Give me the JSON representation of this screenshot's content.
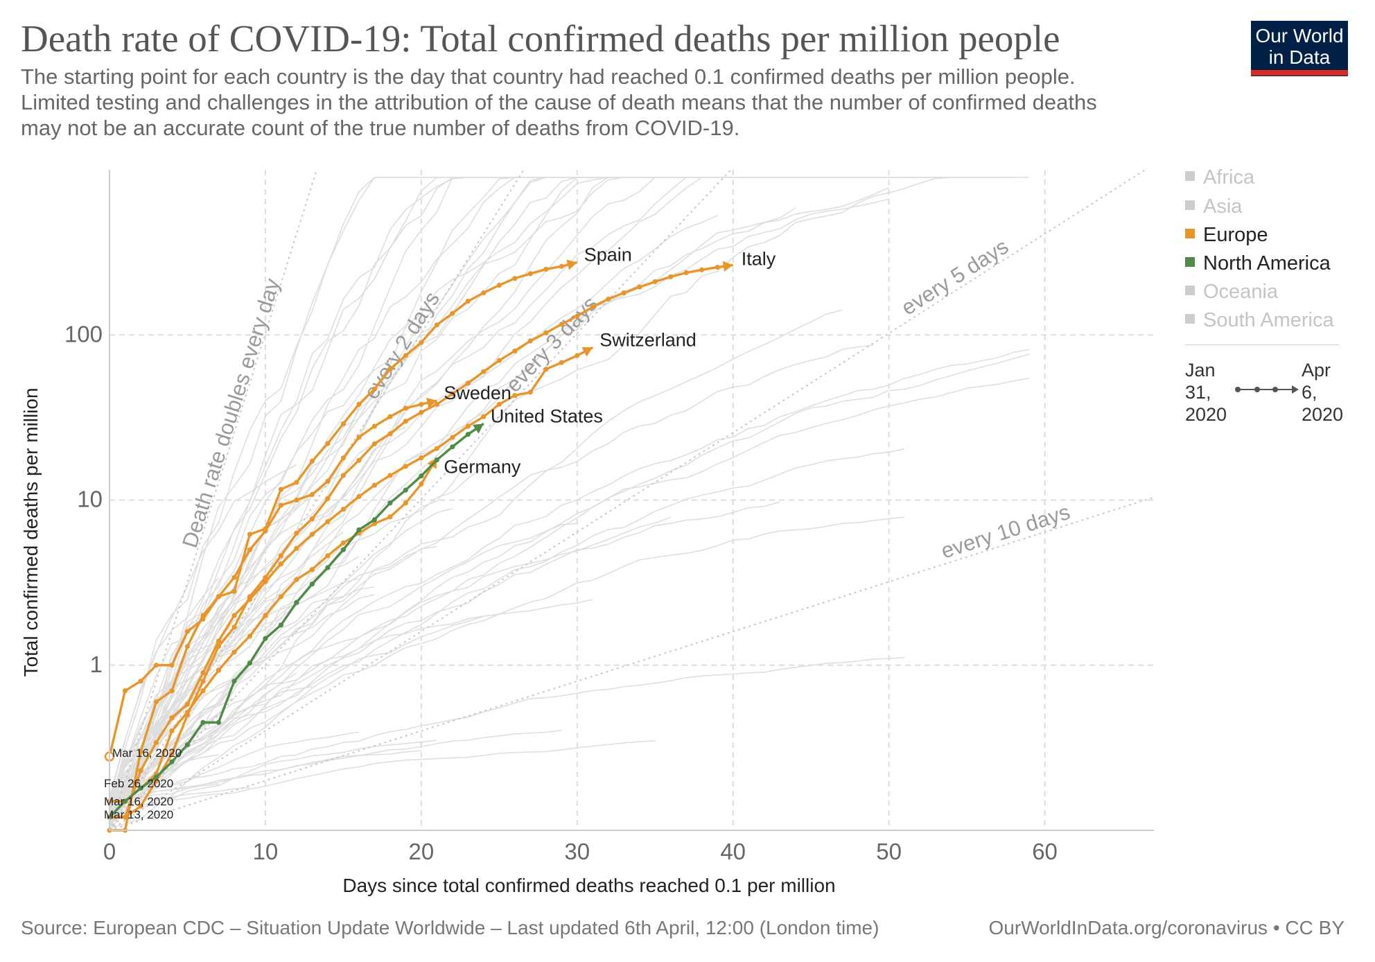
{
  "header": {
    "title": "Death rate of COVID-19: Total confirmed deaths per million people",
    "subtitle": "The starting point for each country is the day that country had reached 0.1 confirmed deaths per million people.\n Limited testing and challenges in the attribution of the cause of death means that the number of confirmed deaths\nmay not be an accurate count of the true number of deaths from COVID-19.",
    "logo_line1": "Our World",
    "logo_line2": "in Data",
    "logo_colors": {
      "background": "#002147",
      "bar": "#d42b21"
    }
  },
  "legend": {
    "items": [
      {
        "label": "Africa",
        "color": "#cccccc",
        "active": false
      },
      {
        "label": "Asia",
        "color": "#cccccc",
        "active": false
      },
      {
        "label": "Europe",
        "color": "#e8952a",
        "active": true
      },
      {
        "label": "North America",
        "color": "#4f8a46",
        "active": true
      },
      {
        "label": "Oceania",
        "color": "#cccccc",
        "active": false
      },
      {
        "label": "South America",
        "color": "#cccccc",
        "active": false
      }
    ]
  },
  "timeline": {
    "start_month": "Jan",
    "start_day": "31,",
    "start_year": "2020",
    "end_month": "Apr",
    "end_day": "6,",
    "end_year": "2020"
  },
  "footer": {
    "source": "Source: European CDC – Situation Update Worldwide – Last updated 6th April, 12:00 (London time)",
    "url": "OurWorldInData.org/coronavirus • CC BY"
  },
  "chart_data": {
    "type": "line",
    "xlabel": "Days since total confirmed deaths reached 0.1 per million",
    "ylabel": "Total confirmed deaths per million",
    "xlim": [
      0,
      67
    ],
    "ylim": [
      0.1,
      1000
    ],
    "y_scale": "log",
    "x_ticks": [
      0,
      10,
      20,
      30,
      40,
      50,
      60
    ],
    "y_ticks": [
      1,
      10,
      100
    ],
    "grid": true,
    "colors": {
      "europe": "#e8952a",
      "north_america": "#4f8a46",
      "background_lines": "#dddddd",
      "reference": "#bbbbbb"
    },
    "reference_lines": [
      {
        "label": "Death rate doubles every day",
        "doubling_days": 1
      },
      {
        "label": "every 2 days",
        "doubling_days": 2
      },
      {
        "label": "every 3 days",
        "doubling_days": 3
      },
      {
        "label": "every 5 days",
        "doubling_days": 5
      },
      {
        "label": "every 10 days",
        "doubling_days": 10
      }
    ],
    "start_annotations": [
      {
        "label": "Mar 16, 2020",
        "y": 0.26
      },
      {
        "label": "Feb 26, 2020",
        "y": 0.15
      },
      {
        "label": "Mar 16, 2020",
        "y": 0.12
      },
      {
        "label": "Mar 13, 2020",
        "y": 0.105
      }
    ],
    "series": [
      {
        "name": "Spain",
        "region": "Europe",
        "x": [
          0,
          1,
          2,
          3,
          4,
          5,
          6,
          7,
          8,
          9,
          10,
          11,
          12,
          13,
          14,
          15,
          16,
          17,
          18,
          19,
          20,
          21,
          22,
          23,
          24,
          25,
          26,
          27,
          28,
          29,
          30
        ],
        "y": [
          0.28,
          0.7,
          0.8,
          1.0,
          1.0,
          1.6,
          1.9,
          2.6,
          2.8,
          6.2,
          6.7,
          11.6,
          12.8,
          17.2,
          22,
          29,
          38,
          47,
          62,
          75,
          90,
          115,
          135,
          160,
          180,
          200,
          220,
          235,
          250,
          260,
          275
        ]
      },
      {
        "name": "Italy",
        "region": "Europe",
        "x": [
          0,
          1,
          2,
          3,
          4,
          5,
          6,
          7,
          8,
          9,
          10,
          11,
          12,
          13,
          14,
          15,
          16,
          17,
          18,
          19,
          20,
          21,
          22,
          23,
          24,
          25,
          26,
          27,
          28,
          29,
          30,
          31,
          32,
          33,
          34,
          35,
          36,
          37,
          38,
          39,
          40
        ],
        "y": [
          0.12,
          0.12,
          0.14,
          0.2,
          0.29,
          0.5,
          0.8,
          1.3,
          1.7,
          2.6,
          3.4,
          4.6,
          6.3,
          7.7,
          10.2,
          14.1,
          17.4,
          21.9,
          25.2,
          30,
          34,
          38,
          44,
          51,
          60,
          70,
          80,
          92,
          103,
          116,
          130,
          148,
          165,
          180,
          195,
          210,
          225,
          238,
          248,
          257,
          265
        ]
      },
      {
        "name": "Switzerland",
        "region": "Europe",
        "x": [
          0,
          1,
          2,
          3,
          4,
          5,
          6,
          7,
          8,
          9,
          10,
          11,
          12,
          13,
          14,
          15,
          16,
          17,
          18,
          19,
          20,
          21,
          22,
          23,
          24,
          25,
          26,
          27,
          28,
          29,
          30,
          31
        ],
        "y": [
          0.12,
          0.12,
          0.23,
          0.34,
          0.48,
          0.58,
          0.9,
          1.4,
          2.0,
          2.5,
          3.2,
          4.1,
          5.1,
          6.2,
          7.4,
          8.8,
          10.5,
          12.3,
          14.1,
          16,
          18,
          20.5,
          24,
          28,
          32,
          38,
          43,
          45,
          62,
          68,
          75,
          84
        ]
      },
      {
        "name": "Sweden",
        "region": "Europe",
        "x": [
          0,
          1,
          2,
          3,
          4,
          5,
          6,
          7,
          8,
          9,
          10,
          11,
          12,
          13,
          14,
          15,
          16,
          17,
          18,
          19,
          20,
          21
        ],
        "y": [
          0.1,
          0.1,
          0.3,
          0.6,
          0.7,
          1.3,
          2.0,
          2.6,
          3.4,
          5.0,
          6.5,
          9.3,
          10.0,
          10.8,
          13,
          18,
          24,
          28,
          32,
          36,
          38,
          40
        ]
      },
      {
        "name": "Germany",
        "region": "Europe",
        "x": [
          0,
          1,
          2,
          3,
          4,
          5,
          6,
          7,
          8,
          9,
          10,
          11,
          12,
          13,
          14,
          15,
          16,
          17,
          18,
          19,
          20,
          21
        ],
        "y": [
          0.15,
          0.15,
          0.18,
          0.22,
          0.4,
          0.52,
          0.7,
          0.93,
          1.2,
          1.5,
          2.0,
          2.6,
          3.3,
          3.8,
          4.6,
          5.5,
          6.3,
          7.2,
          7.9,
          9.6,
          12.5,
          18
        ]
      },
      {
        "name": "United States",
        "region": "North America",
        "x": [
          0,
          1,
          2,
          3,
          4,
          5,
          6,
          7,
          8,
          9,
          10,
          11,
          12,
          13,
          14,
          15,
          16,
          17,
          18,
          19,
          20,
          21,
          22,
          23,
          24
        ],
        "y": [
          0.12,
          0.15,
          0.18,
          0.21,
          0.26,
          0.33,
          0.45,
          0.45,
          0.8,
          1.03,
          1.45,
          1.75,
          2.4,
          3.1,
          3.9,
          5.0,
          6.6,
          7.6,
          9.6,
          11.5,
          14,
          17.5,
          21,
          25,
          29
        ]
      }
    ]
  }
}
